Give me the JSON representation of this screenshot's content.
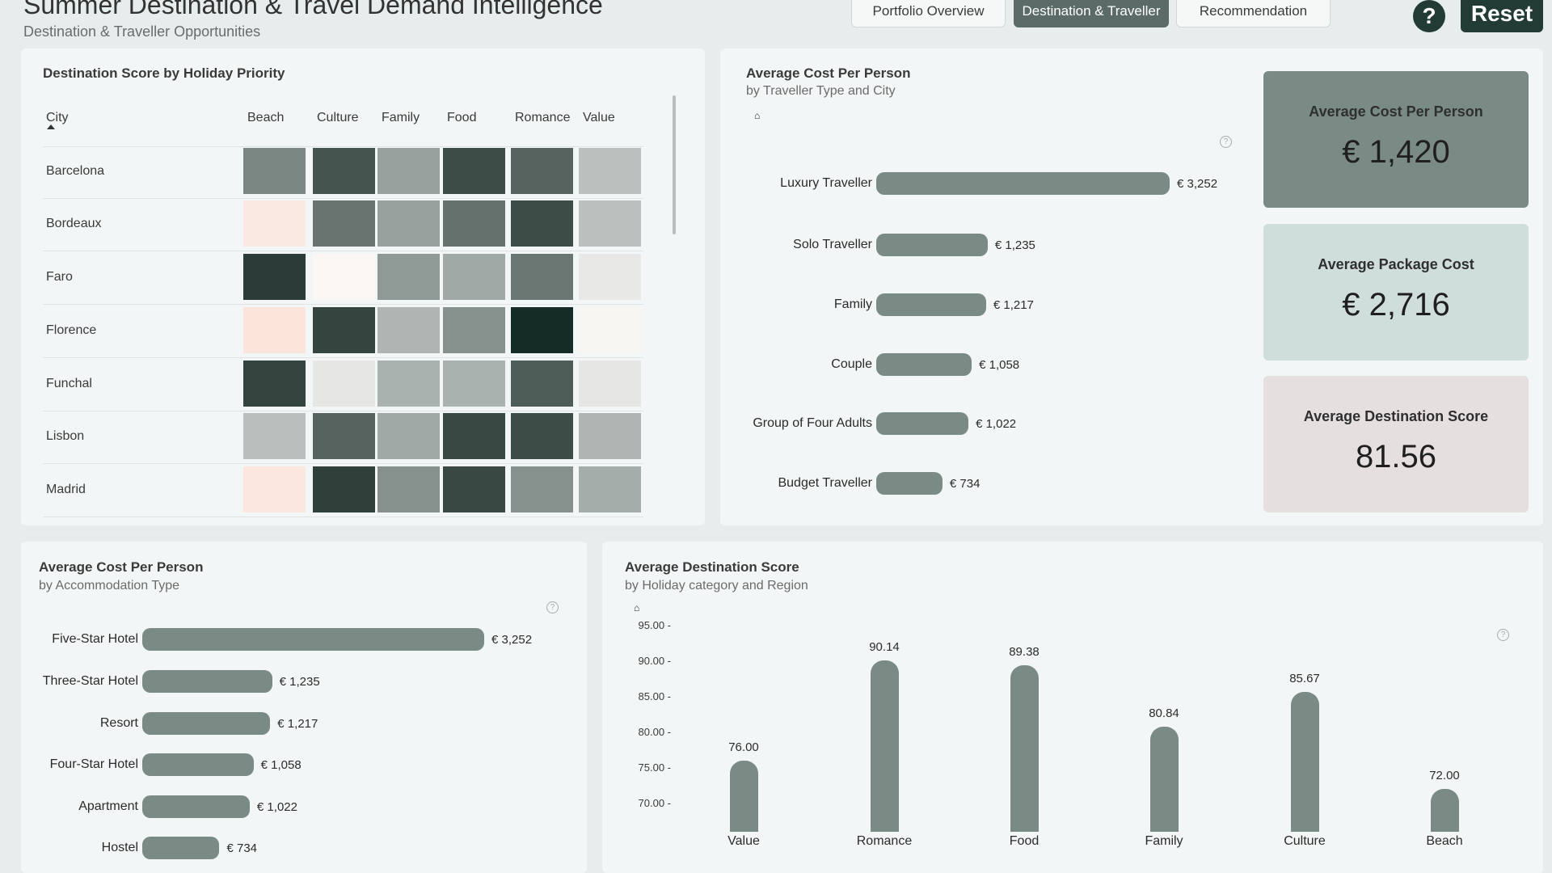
{
  "header": {
    "title": "Summer Destination & Travel Demand Intelligence",
    "subtitle": "Destination & Traveller Opportunities",
    "tabs": [
      "Portfolio Overview",
      "Destination & Traveller",
      "Recommendation"
    ],
    "active_tab": "Destination & Traveller",
    "help_label": "?",
    "reset_label": "Reset"
  },
  "heatmap": {
    "title": "Destination Score by Holiday Priority",
    "city_header": "City",
    "columns": [
      "Beach",
      "Culture",
      "Family",
      "Food",
      "Romance",
      "Value"
    ],
    "rows": [
      {
        "city": "Barcelona",
        "colors": [
          "#7b8783",
          "#46544f",
          "#98a19e",
          "#3e4c48",
          "#56635f",
          "#bbc0be"
        ]
      },
      {
        "city": "Bordeaux",
        "colors": [
          "#fae9e3",
          "#69736f",
          "#98a19e",
          "#65716d",
          "#3e4c48",
          "#bbc0be"
        ]
      },
      {
        "city": "Faro",
        "colors": [
          "#2b3b37",
          "#faf7f4",
          "#8f9996",
          "#a0a9a6",
          "#6a7672",
          "#e8e8e6"
        ]
      },
      {
        "city": "Florence",
        "colors": [
          "#fbe4da",
          "#34443f",
          "#aeb5b2",
          "#86918d",
          "#142b26",
          "#f8f6f3"
        ]
      },
      {
        "city": "Funchal",
        "colors": [
          "#34443f",
          "#e6e6e4",
          "#aab2af",
          "#aab2af",
          "#4e5c58",
          "#e6e6e4"
        ]
      },
      {
        "city": "Lisbon",
        "colors": [
          "#b9bfbc",
          "#56635f",
          "#a0a9a6",
          "#3a4844",
          "#3e4c48",
          "#aeb5b2"
        ]
      },
      {
        "city": "Madrid",
        "colors": [
          "#fbe7de",
          "#2f3f3a",
          "#86918d",
          "#3a4844",
          "#86918d",
          "#a5adaa"
        ]
      }
    ]
  },
  "traveller_chart": {
    "title": "Average Cost Per Person",
    "subtitle": "by Traveller Type and City",
    "categories": [
      "Luxury Traveller",
      "Solo Traveller",
      "Family",
      "Couple",
      "Group of Four Adults",
      "Budget Traveller"
    ],
    "values": [
      3252,
      1235,
      1217,
      1058,
      1022,
      734
    ],
    "labels": [
      "€ 3,252",
      "€ 1,235",
      "€ 1,217",
      "€ 1,058",
      "€ 1,022",
      "€ 734"
    ],
    "bar_color": "#7a8b86"
  },
  "kpis": [
    {
      "title": "Average Cost Per Person",
      "value": "€ 1,420",
      "bg": "#7a8b86"
    },
    {
      "title": "Average Package Cost",
      "value": "€ 2,716",
      "bg": "#cfdddb"
    },
    {
      "title": "Average Destination Score",
      "value": "81.56",
      "bg": "#e5dfe0"
    }
  ],
  "accommodation_chart": {
    "title": "Average Cost Per Person",
    "subtitle": "by Accommodation Type",
    "categories": [
      "Five-Star Hotel",
      "Three-Star Hotel",
      "Resort",
      "Four-Star Hotel",
      "Apartment",
      "Hostel"
    ],
    "values": [
      3252,
      1235,
      1217,
      1058,
      1022,
      734
    ],
    "labels": [
      "€ 3,252",
      "€ 1,235",
      "€ 1,217",
      "€ 1,058",
      "€ 1,022",
      "€ 734"
    ]
  },
  "chart_data": {
    "type": "bar",
    "title": "Average Destination Score",
    "subtitle": "by Holiday category and Region",
    "categories": [
      "Value",
      "Romance",
      "Food",
      "Family",
      "Culture",
      "Beach"
    ],
    "values": [
      76.0,
      90.14,
      89.38,
      80.84,
      85.67,
      72.0
    ],
    "labels": [
      "76.00",
      "90.14",
      "89.38",
      "80.84",
      "85.67",
      "72.00"
    ],
    "yticks": [
      "95.00",
      "90.00",
      "85.00",
      "80.00",
      "75.00",
      "70.00"
    ],
    "ylim": [
      66,
      95
    ],
    "grid": false
  }
}
